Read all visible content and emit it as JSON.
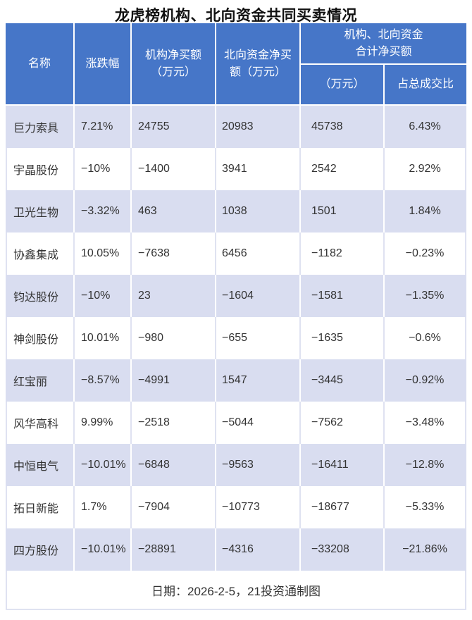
{
  "title": "龙虎榜机构、北向资金共同买卖情况",
  "footer_note": "日期：2026-2-5，21投资通制图",
  "colors": {
    "header_bg": "#4676C8",
    "alt_row_bg": "#D9DDF0",
    "plain_row_bg": "#FFFFFF",
    "grid_light": "#DFE2F1",
    "header_text": "#FFFFFF",
    "body_text": "#333333"
  },
  "headers": {
    "name": "名称",
    "change": "涨跌幅",
    "inst_net": "机构净买额\n（万元）",
    "north_net": "北向资金净买\n额（万元）",
    "combined": "机构、北向资金\n合计净买额",
    "combined_amount": "（万元）",
    "combined_ratio": "占总成交比"
  },
  "chart_data": {
    "type": "table",
    "title": "龙虎榜机构、北向资金共同买卖情况",
    "columns": [
      "名称",
      "涨跌幅",
      "机构净买额（万元）",
      "北向资金净买额（万元）",
      "机构、北向资金合计净买额（万元）",
      "机构、北向资金合计净买额占总成交比"
    ],
    "rows": [
      [
        "巨力索具",
        "7.21%",
        "24755",
        "20983",
        "45738",
        "6.43%"
      ],
      [
        "宇晶股份",
        "−10%",
        "−1400",
        "3941",
        "2542",
        "2.92%"
      ],
      [
        "卫光生物",
        "−3.32%",
        "463",
        "1038",
        "1501",
        "1.84%"
      ],
      [
        "协鑫集成",
        "10.05%",
        "−7638",
        "6456",
        "−1182",
        "−0.23%"
      ],
      [
        "钧达股份",
        "−10%",
        "23",
        "−1604",
        "−1581",
        "−1.35%"
      ],
      [
        "神剑股份",
        "10.01%",
        "−980",
        "−655",
        "−1635",
        "−0.6%"
      ],
      [
        "红宝丽",
        "−8.57%",
        "−4991",
        "1547",
        "−3445",
        "−0.92%"
      ],
      [
        "风华高科",
        "9.99%",
        "−2518",
        "−5044",
        "−7562",
        "−3.48%"
      ],
      [
        "中恒电气",
        "−10.01%",
        "−6848",
        "−9563",
        "−16411",
        "−12.8%"
      ],
      [
        "拓日新能",
        "1.7%",
        "−7904",
        "−10773",
        "−18677",
        "−5.33%"
      ],
      [
        "四方股份",
        "−10.01%",
        "−28891",
        "−4316",
        "−33208",
        "−21.86%"
      ]
    ],
    "note": "日期：2026-2-5，21投资通制图"
  }
}
